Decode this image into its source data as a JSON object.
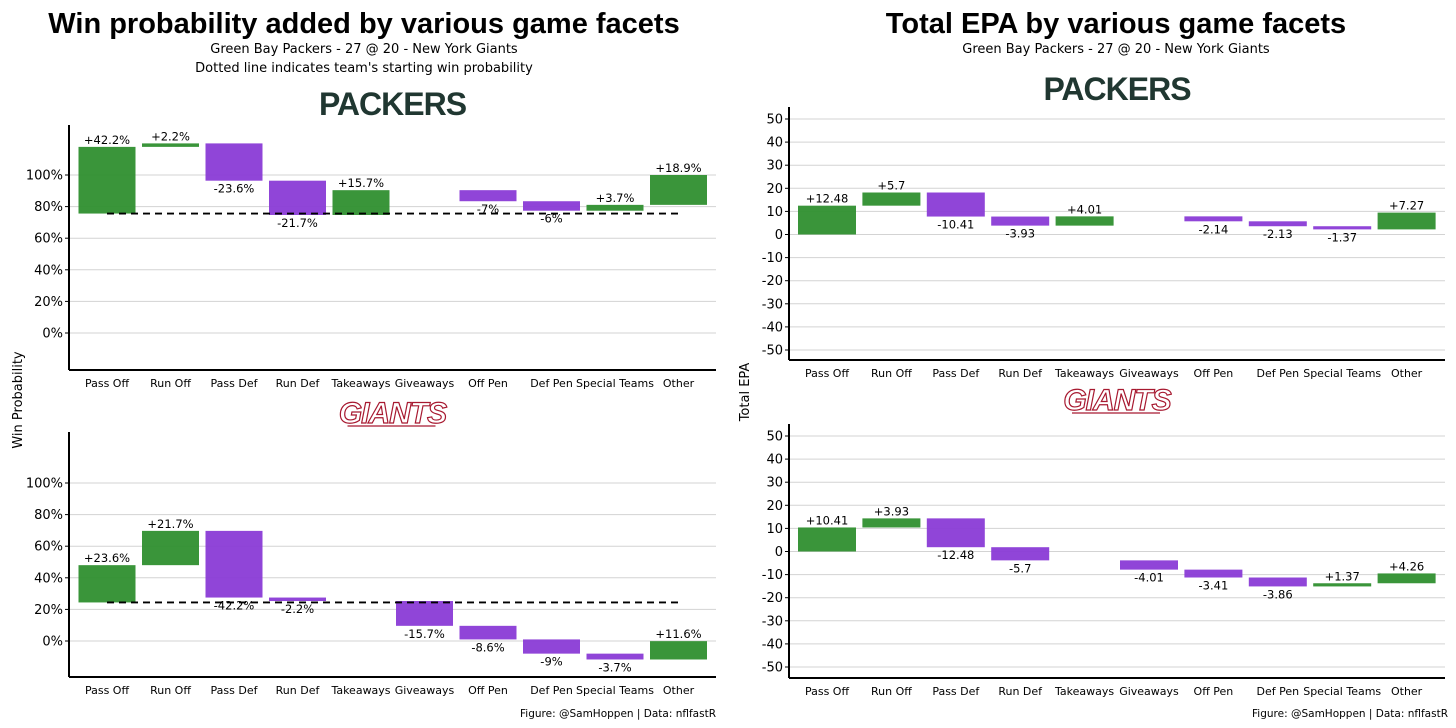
{
  "colors": {
    "positive": "#2f8f2f",
    "negative": "#8a3bd6",
    "packers": "#203731",
    "giants": "#a71930"
  },
  "chart_data": [
    {
      "type": "waterfall",
      "title": "Win probability added by various game facets",
      "subtitle": "Green Bay Packers - 27 @ 20 - New York Giants",
      "subtitle2": "Dotted line indicates team's starting win probability",
      "ylabel": "Win Probability",
      "caption": "Figure: @SamHoppen | Data: nflfastR",
      "categories": [
        "Pass Off",
        "Run Off",
        "Pass Def",
        "Run Def",
        "Takeaways",
        "Giveaways",
        "Off Pen",
        "Def Pen",
        "Special Teams",
        "Other"
      ],
      "ylim": [
        -23,
        131
      ],
      "yticks": [
        0,
        20,
        40,
        60,
        80,
        100
      ],
      "ytick_labels": [
        "0%",
        "20%",
        "40%",
        "60%",
        "80%",
        "100%"
      ],
      "panels": [
        {
          "team": "PACKERS",
          "start": 75.6,
          "values": [
            42.2,
            2.2,
            -23.6,
            -21.7,
            15.7,
            0,
            -7,
            -6,
            3.7,
            18.9
          ],
          "labels": [
            "+42.2%",
            "+2.2%",
            "-23.6%",
            "-21.7%",
            "+15.7%",
            "",
            "-7%",
            "-6%",
            "+3.7%",
            "+18.9%"
          ]
        },
        {
          "team": "GIANTS",
          "start": 24.4,
          "values": [
            23.6,
            21.7,
            -42.2,
            -2.2,
            0,
            -15.7,
            -8.6,
            -9,
            -3.7,
            11.6
          ],
          "labels": [
            "+23.6%",
            "+21.7%",
            "-42.2%",
            "-2.2%",
            "",
            "-15.7%",
            "-8.6%",
            "-9%",
            "-3.7%",
            "+11.6%"
          ]
        }
      ]
    },
    {
      "type": "waterfall",
      "title": "Total EPA by various game facets",
      "subtitle": "Green Bay Packers - 27 @ 20 - New York Giants",
      "ylabel": "Total EPA",
      "caption": "Figure: @SamHoppen | Data: nflfastR",
      "categories": [
        "Pass Off",
        "Run Off",
        "Pass Def",
        "Run Def",
        "Takeaways",
        "Giveaways",
        "Off Pen",
        "Def Pen",
        "Special Teams",
        "Other"
      ],
      "ylim": [
        -55,
        55
      ],
      "yticks": [
        -50,
        -40,
        -30,
        -20,
        -10,
        0,
        10,
        20,
        30,
        40,
        50
      ],
      "ytick_labels": [
        "-50",
        "-40",
        "-30",
        "-20",
        "-10",
        "0",
        "10",
        "20",
        "30",
        "40",
        "50"
      ],
      "panels": [
        {
          "team": "PACKERS",
          "start": 0,
          "values": [
            12.48,
            5.7,
            -10.41,
            -3.93,
            4.01,
            0,
            -2.14,
            -2.13,
            -1.37,
            7.27
          ],
          "labels": [
            "+12.48",
            "+5.7",
            "-10.41",
            "-3.93",
            "+4.01",
            "",
            "-2.14",
            "-2.13",
            "-1.37",
            "+7.27"
          ]
        },
        {
          "team": "GIANTS",
          "start": 0,
          "values": [
            10.41,
            3.93,
            -12.48,
            -5.7,
            0,
            -4.01,
            -3.41,
            -3.86,
            1.37,
            4.26
          ],
          "labels": [
            "+10.41",
            "+3.93",
            "-12.48",
            "-5.7",
            "",
            "-4.01",
            "-3.41",
            "-3.86",
            "+1.37",
            "+4.26"
          ]
        }
      ]
    }
  ]
}
